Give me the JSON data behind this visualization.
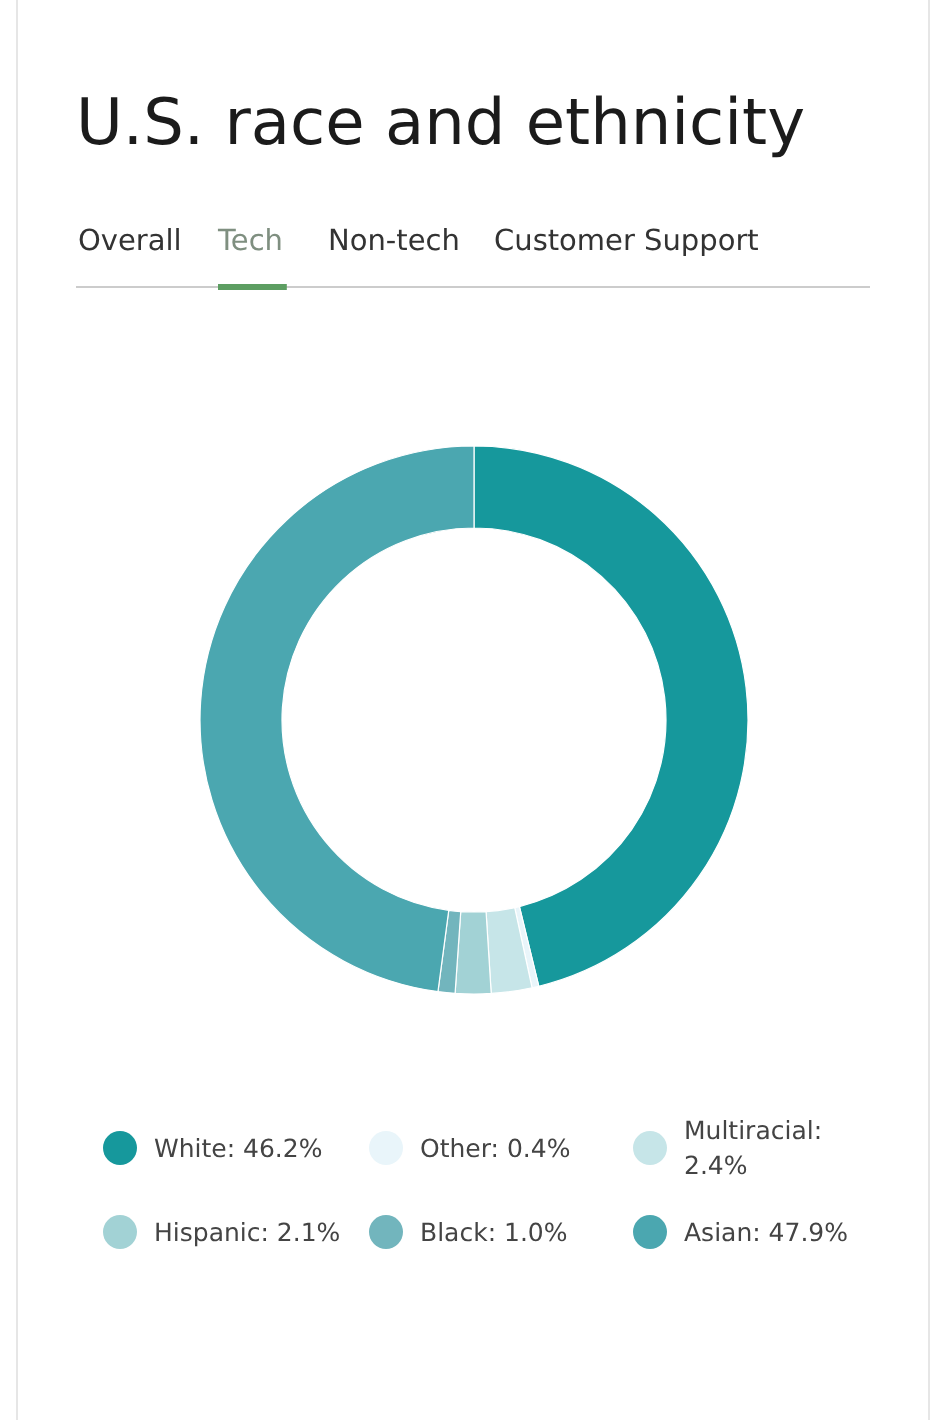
{
  "chart_data": {
    "type": "donut",
    "title": "U.S. race and ethnicity",
    "annotations": [
      "Overall",
      "Tech",
      "Non-tech",
      "Customer Support"
    ],
    "categories": [
      "White: 46.2%",
      "Other: 0.4%",
      "Multiracial: 2.4%",
      "Hispanic: 2.1%",
      "Black: 1.0%",
      "Asian: 47.9%"
    ],
    "values": [
      46.2,
      0.4,
      2.4,
      2.1,
      1.0,
      47.9
    ],
    "colors": [
      "#16989c",
      "#e9f5fa",
      "#c6e5e8",
      "#a2d2d5",
      "#72b5bd",
      "#4ba7b0"
    ],
    "legend": "bottom"
  }
}
